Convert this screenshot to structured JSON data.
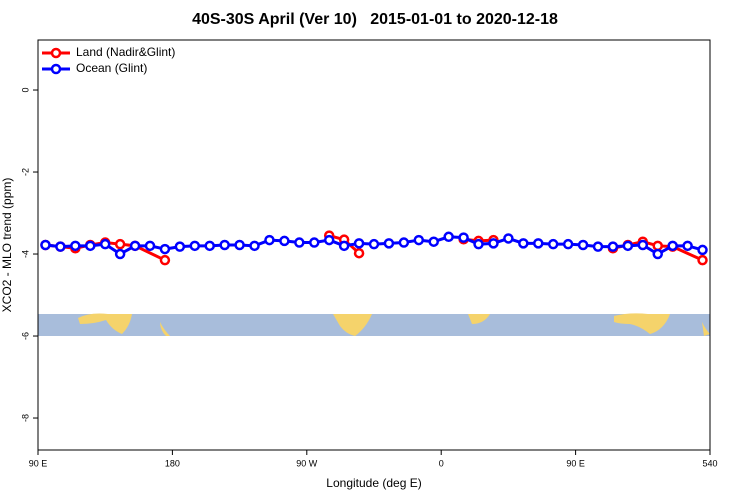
{
  "chart_data": {
    "type": "line",
    "title": "40S-30S April (Ver 10)   2015-01-01 to 2020-12-18",
    "xlabel": "Longitude (deg E)",
    "ylabel": "XCO2 - MLO trend (ppm)",
    "xlim": [
      90,
      540
    ],
    "ylim": [
      -8.78,
      1.22
    ],
    "xticks": [
      {
        "value": 90,
        "label": "90 E"
      },
      180,
      {
        "value": 270,
        "label": "90 W"
      },
      {
        "value": 360,
        "label": "0"
      },
      {
        "value": 450,
        "label": "90 E"
      },
      540
    ],
    "yticks": [
      0,
      -2,
      -4,
      -6,
      -8
    ],
    "legend": "top-left",
    "series": [
      {
        "name": "Land (Nadir&Glint)",
        "color": "#ff0000",
        "x": [
          95,
          105,
          115,
          125,
          135,
          145,
          155,
          175,
          230,
          285,
          295,
          305,
          340,
          375,
          385,
          395,
          435,
          475,
          485,
          495,
          505,
          515,
          535
        ],
        "values": [
          -3.78,
          -3.82,
          -3.86,
          -3.78,
          -3.72,
          -3.76,
          -3.8,
          -4.15,
          null,
          -3.55,
          -3.65,
          -3.98,
          null,
          -3.64,
          -3.68,
          -3.66,
          null,
          -3.86,
          -3.78,
          -3.7,
          -3.8,
          -3.82,
          -4.15
        ]
      },
      {
        "name": "Ocean (Glint)",
        "color": "#0000ff",
        "x": [
          95,
          105,
          115,
          125,
          135,
          145,
          155,
          165,
          175,
          185,
          195,
          205,
          215,
          225,
          235,
          245,
          255,
          265,
          275,
          285,
          295,
          305,
          315,
          325,
          335,
          345,
          355,
          365,
          375,
          385,
          395,
          405,
          415,
          425,
          435,
          445,
          455,
          465,
          475,
          485,
          495,
          505,
          515,
          525,
          535
        ],
        "values": [
          -3.78,
          -3.82,
          -3.8,
          -3.8,
          -3.76,
          -4.0,
          -3.8,
          -3.8,
          -3.88,
          -3.82,
          -3.8,
          -3.8,
          -3.78,
          -3.78,
          -3.8,
          -3.66,
          -3.68,
          -3.72,
          -3.72,
          -3.66,
          -3.8,
          -3.74,
          -3.76,
          -3.74,
          -3.72,
          -3.66,
          -3.7,
          -3.58,
          -3.6,
          -3.76,
          -3.74,
          -3.62,
          -3.74,
          -3.74,
          -3.76,
          -3.76,
          -3.78,
          -3.82,
          -3.82,
          -3.8,
          -3.78,
          -4.0,
          -3.8,
          -3.8,
          -3.9
        ]
      }
    ]
  }
}
